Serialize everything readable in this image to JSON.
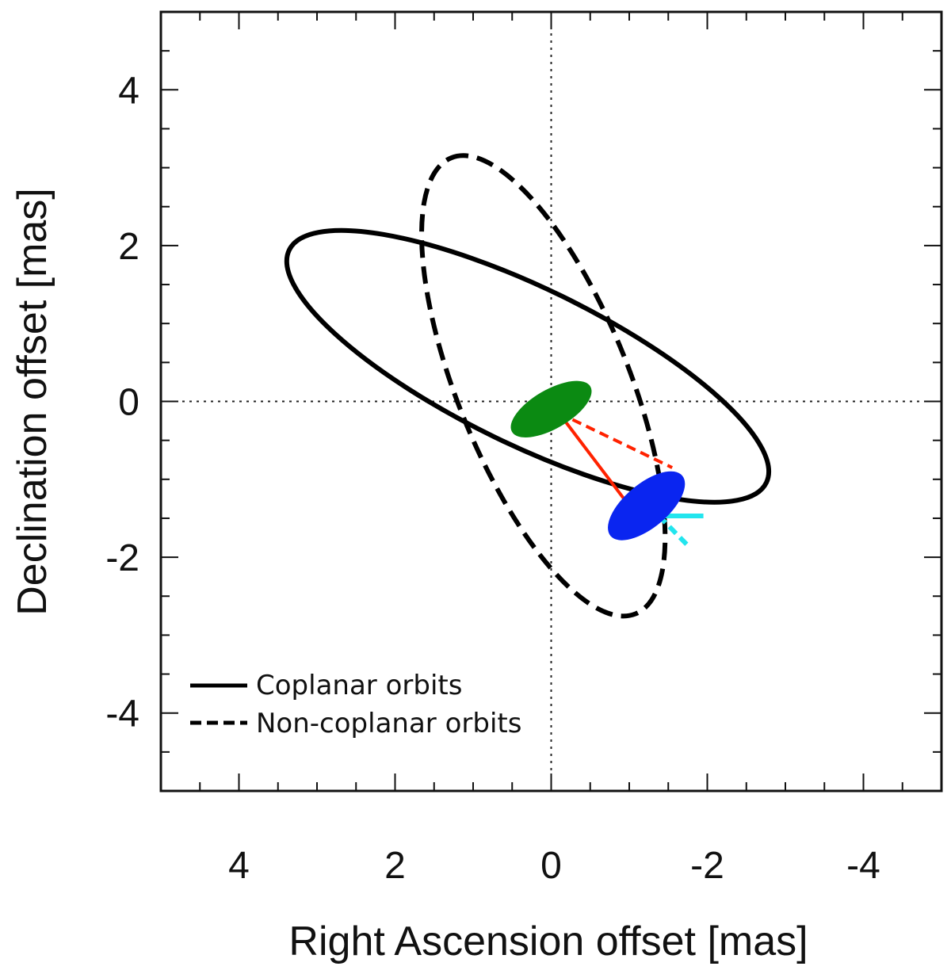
{
  "chart_data": {
    "type": "scatter",
    "xlabel": "Right Ascension offset [mas]",
    "ylabel": "Declination offset [mas]",
    "xlim": [
      5,
      -5
    ],
    "ylim": [
      -5,
      5
    ],
    "x_reversed": true,
    "xticks": [
      4,
      2,
      0,
      -2,
      -4
    ],
    "yticks": [
      -4,
      -2,
      0,
      2,
      4
    ],
    "xtick_labels": [
      "4",
      "2",
      "0",
      "-2",
      "-4"
    ],
    "ytick_labels": [
      "-4",
      "-2",
      "0",
      "2",
      "4"
    ],
    "reference_lines": {
      "x": 0,
      "y": 0,
      "style": "dotted"
    },
    "orbits": [
      {
        "name": "Coplanar orbits",
        "line_style": "solid",
        "color": "#000000",
        "center": [
          0.3,
          0.45
        ],
        "semi_major": 3.4,
        "semi_minor": 1.0,
        "angle_deg": 154
      },
      {
        "name": "Non-coplanar orbits",
        "line_style": "dashed",
        "color": "#000000",
        "center": [
          0.1,
          0.2
        ],
        "semi_major": 3.15,
        "semi_minor": 1.1,
        "angle_deg": 112
      }
    ],
    "components": [
      {
        "id": "central",
        "color": "#0b8a12",
        "center": [
          0.0,
          -0.1
        ],
        "semi_major": 0.58,
        "semi_minor": 0.25,
        "angle_deg": 30
      },
      {
        "id": "companion",
        "color": "#0a25f0",
        "center": [
          -1.22,
          -1.34
        ],
        "semi_major": 0.6,
        "semi_minor": 0.28,
        "angle_deg": 40
      }
    ],
    "segments": [
      {
        "from": [
          -0.1,
          -0.15
        ],
        "to": [
          -0.97,
          -1.3
        ],
        "color": "#ff2200",
        "line_style": "solid"
      },
      {
        "from": [
          -0.1,
          -0.15
        ],
        "to": [
          -1.55,
          -0.85
        ],
        "color": "#ff2200",
        "line_style": "dashed"
      },
      {
        "from": [
          -1.38,
          -1.47
        ],
        "to": [
          -1.95,
          -1.47
        ],
        "color": "#22e5ee",
        "line_style": "solid"
      },
      {
        "from": [
          -1.38,
          -1.47
        ],
        "to": [
          -1.78,
          -1.88
        ],
        "color": "#22e5ee",
        "line_style": "dashed"
      }
    ],
    "legend": {
      "placement": "bottom-left",
      "entries": [
        {
          "label": "Coplanar orbits",
          "line_style": "solid"
        },
        {
          "label": "Non-coplanar orbits",
          "line_style": "dashed"
        }
      ]
    }
  }
}
